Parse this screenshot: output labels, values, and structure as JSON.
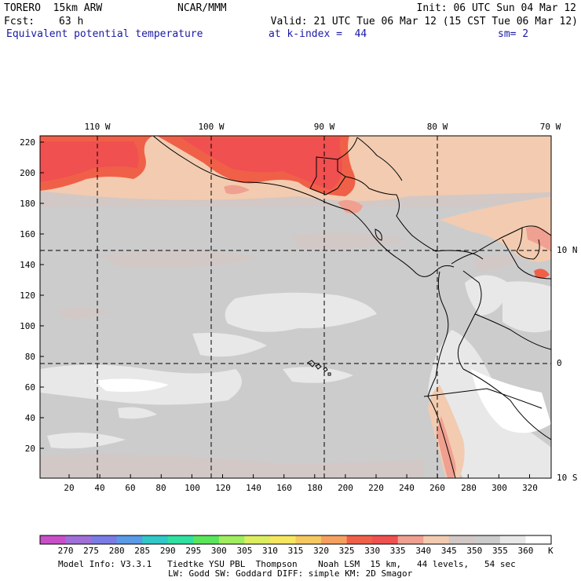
{
  "header": {
    "model": "TORERO  15km ARW",
    "org": "NCAR/MMM",
    "init": "Init: 06 UTC Sun 04 Mar 12",
    "fcst_label": "Fcst:",
    "fcst_value": "63 h",
    "valid": "Valid: 21 UTC Tue 06 Mar 12 (15 CST Tue 06 Mar 12)",
    "field": "Equivalent potential temperature",
    "level": "at k-index =  44",
    "smoothing": "sm= 2"
  },
  "map": {
    "lon_labels": [
      "110 W",
      "100 W",
      "90 W",
      "80 W",
      "70 W"
    ],
    "lat_labels": [
      "10 N",
      "0",
      "10 S"
    ],
    "y_ticks": [
      "220",
      "200",
      "180",
      "160",
      "140",
      "120",
      "100",
      "80",
      "60",
      "40",
      "20"
    ],
    "x_ticks": [
      "20",
      "40",
      "60",
      "80",
      "100",
      "120",
      "140",
      "160",
      "180",
      "200",
      "220",
      "240",
      "260",
      "280",
      "300",
      "320"
    ]
  },
  "colorbar": {
    "unit": "K",
    "labels": [
      "270",
      "275",
      "280",
      "285",
      "290",
      "295",
      "300",
      "305",
      "310",
      "315",
      "320",
      "325",
      "330",
      "335",
      "340",
      "345",
      "350",
      "355",
      "360"
    ],
    "colors": [
      "#c94fc9",
      "#a070d8",
      "#7b7be6",
      "#5a9ae6",
      "#30c8c8",
      "#30e0a0",
      "#5ae65a",
      "#a0ee60",
      "#dcee60",
      "#f6e660",
      "#f6c860",
      "#f6a060",
      "#f06048",
      "#f05050",
      "#f0a090",
      "#f2cbb0",
      "#d2c8c6",
      "#cccccc",
      "#e8e8e8",
      "#ffffff"
    ]
  },
  "footer": {
    "line1": "Model Info: V3.3.1   Tiedtke YSU PBL  Thompson    Noah LSM  15 km,   44 levels,   54 sec",
    "line2": "LW: Godd SW: Goddard DIFF: simple KM: 2D Smagor"
  }
}
